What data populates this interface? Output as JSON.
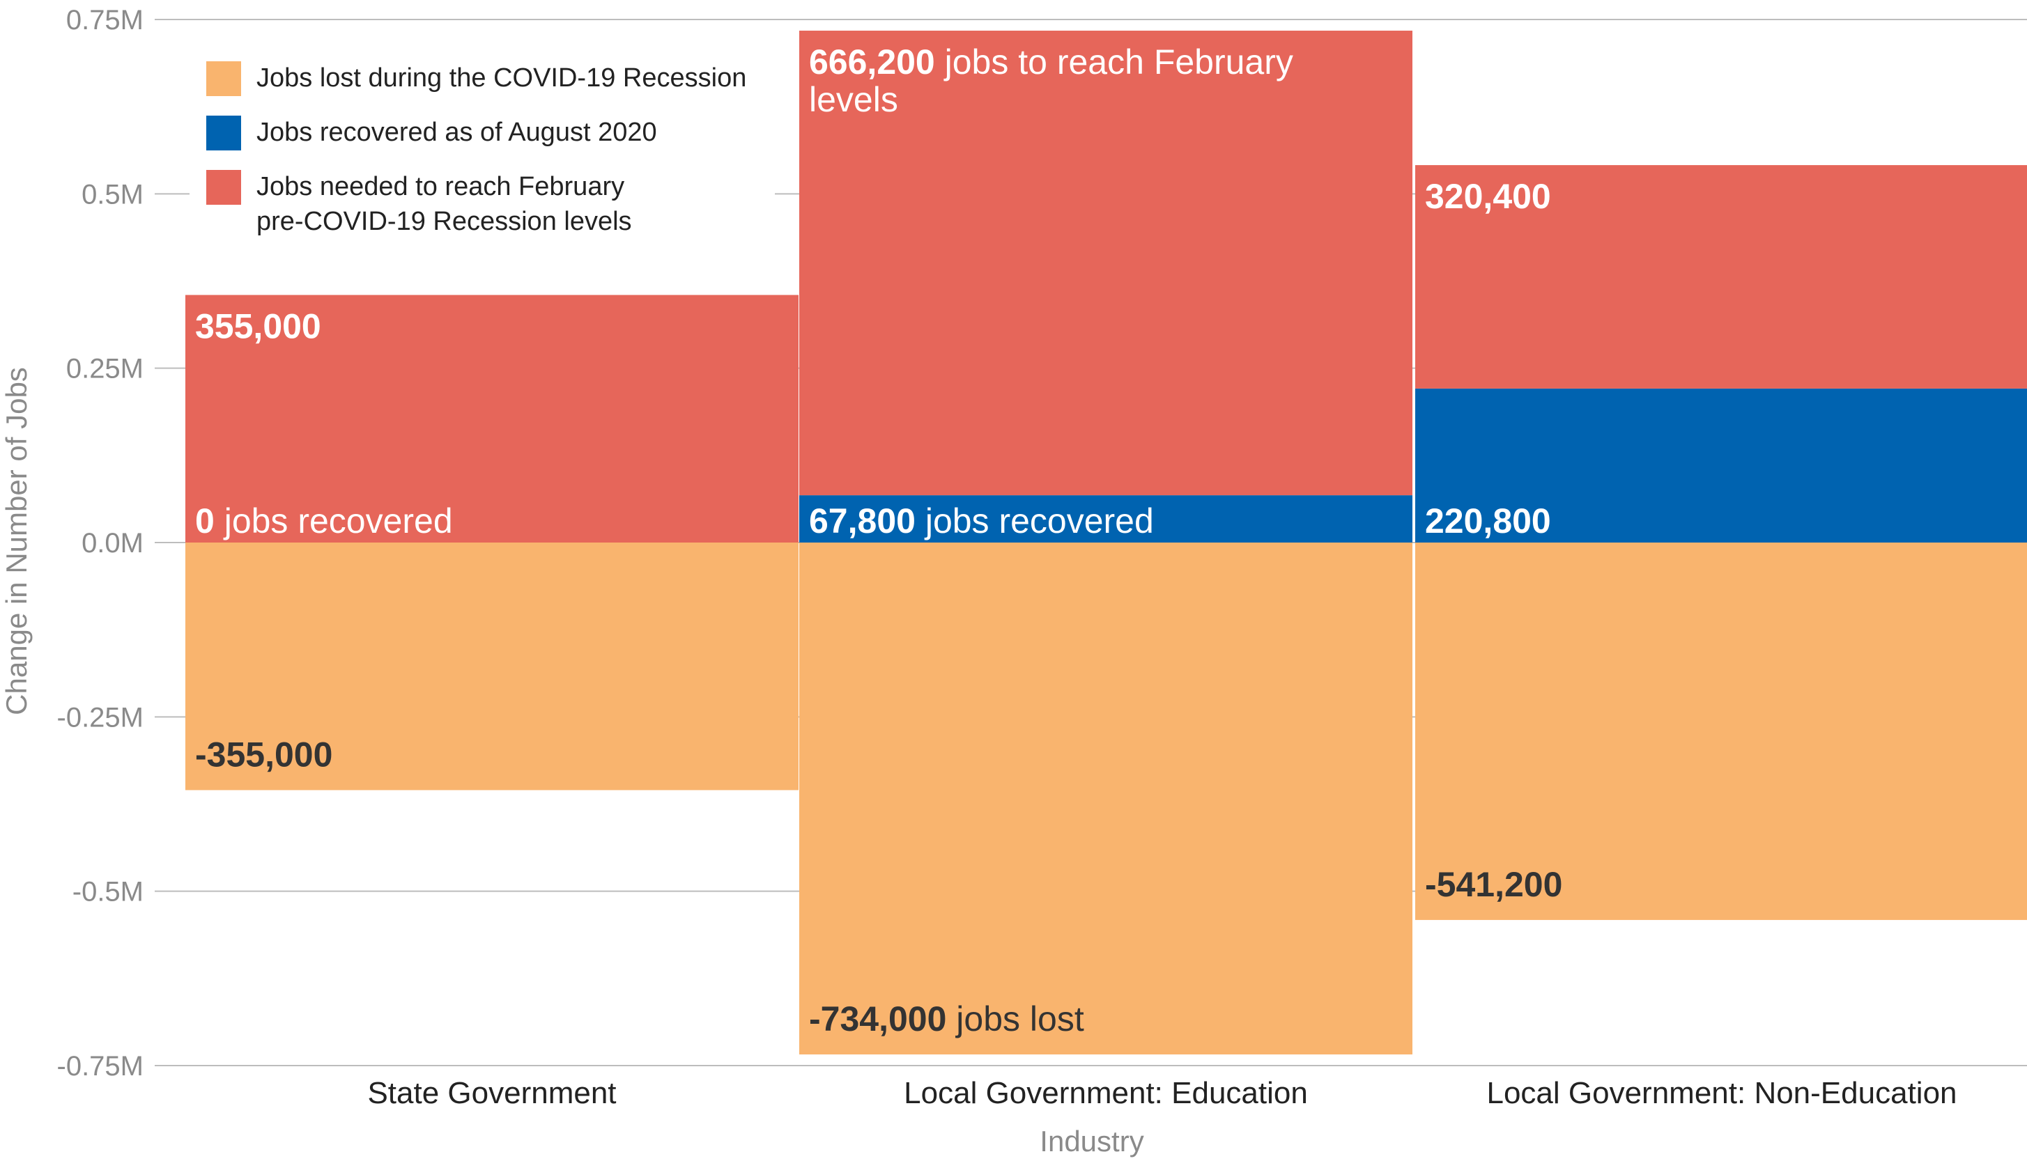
{
  "chart_data": {
    "type": "bar",
    "stacked": true,
    "categories": [
      "State Government",
      "Local Government: Education",
      "Local Government: Non-Education"
    ],
    "series": [
      {
        "name": "Jobs lost during the COVID-19 Recession",
        "color": "#f9b46e",
        "values": [
          -355000,
          -734000,
          -541200
        ]
      },
      {
        "name": "Jobs recovered as of August 2020",
        "color": "#0063b0",
        "values": [
          0,
          67800,
          220800
        ]
      },
      {
        "name": "Jobs needed to reach February pre-COVID-19 Recession levels",
        "color": "#e6665a",
        "values": [
          355000,
          666200,
          320400
        ]
      }
    ],
    "xlabel": "Industry",
    "ylabel": "Change in Number of Jobs",
    "ylim": [
      -750000,
      750000
    ],
    "yticks": [
      {
        "value": 750000,
        "label": "0.75M"
      },
      {
        "value": 500000,
        "label": "0.5M"
      },
      {
        "value": 250000,
        "label": "0.25M"
      },
      {
        "value": 0,
        "label": "0.0M"
      },
      {
        "value": -250000,
        "label": "-0.25M"
      },
      {
        "value": -500000,
        "label": "-0.5M"
      },
      {
        "value": -750000,
        "label": "-0.75M"
      }
    ],
    "grid": true,
    "legend_position": "top-left",
    "legend_lines": [
      [
        "Jobs lost during the COVID-19 Recession"
      ],
      [
        "Jobs recovered as of August 2020"
      ],
      [
        "Jobs needed to reach February",
        "pre-COVID-19 Recession levels"
      ]
    ],
    "annotations": [
      {
        "category": 0,
        "series": 2,
        "bold": "355,000",
        "text": ""
      },
      {
        "category": 0,
        "series": 1,
        "bold": "0",
        "text": " jobs recovered"
      },
      {
        "category": 0,
        "series": 0,
        "bold": "-355,000",
        "text": ""
      },
      {
        "category": 1,
        "series": 2,
        "bold": "666,200",
        "text": " jobs to reach February",
        "text2": "levels"
      },
      {
        "category": 1,
        "series": 1,
        "bold": "67,800",
        "text": " jobs recovered"
      },
      {
        "category": 1,
        "series": 0,
        "bold": "-734,000",
        "text": " jobs lost"
      },
      {
        "category": 2,
        "series": 2,
        "bold": "320,400",
        "text": ""
      },
      {
        "category": 2,
        "series": 1,
        "bold": "220,800",
        "text": ""
      },
      {
        "category": 2,
        "series": 0,
        "bold": "-541,200",
        "text": ""
      }
    ]
  }
}
